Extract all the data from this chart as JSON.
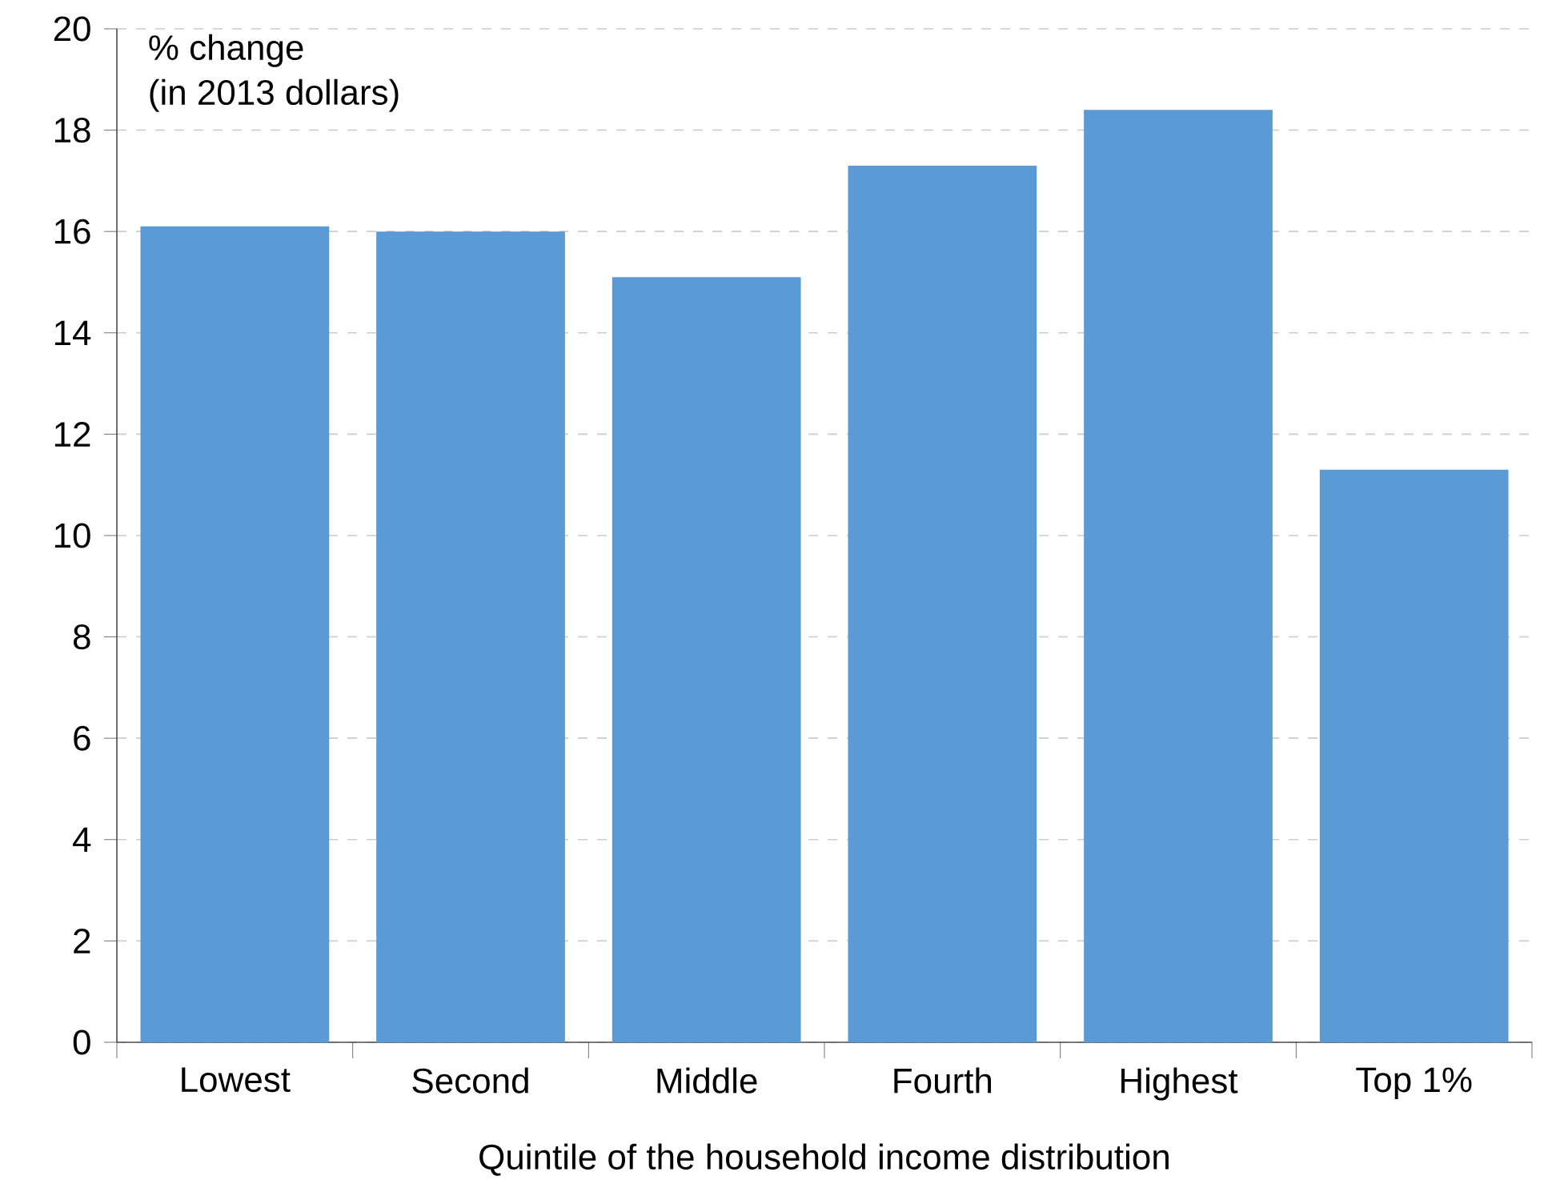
{
  "chart_data": {
    "type": "bar",
    "xlabel": "Quintile of the household income distribution",
    "ylabel": "% change",
    "annotations": [
      "(in 2013 dollars)"
    ],
    "categories": [
      "Lowest",
      "Second",
      "Middle",
      "Fourth",
      "Highest",
      "Top 1%"
    ],
    "values": [
      16.1,
      16.0,
      15.1,
      17.3,
      18.4,
      11.3
    ],
    "color": "#5b9bd5",
    "ylim": [
      0,
      20
    ],
    "yticks": [
      0,
      2,
      4,
      6,
      8,
      10,
      12,
      14,
      16,
      18,
      20
    ],
    "grid": "y"
  }
}
